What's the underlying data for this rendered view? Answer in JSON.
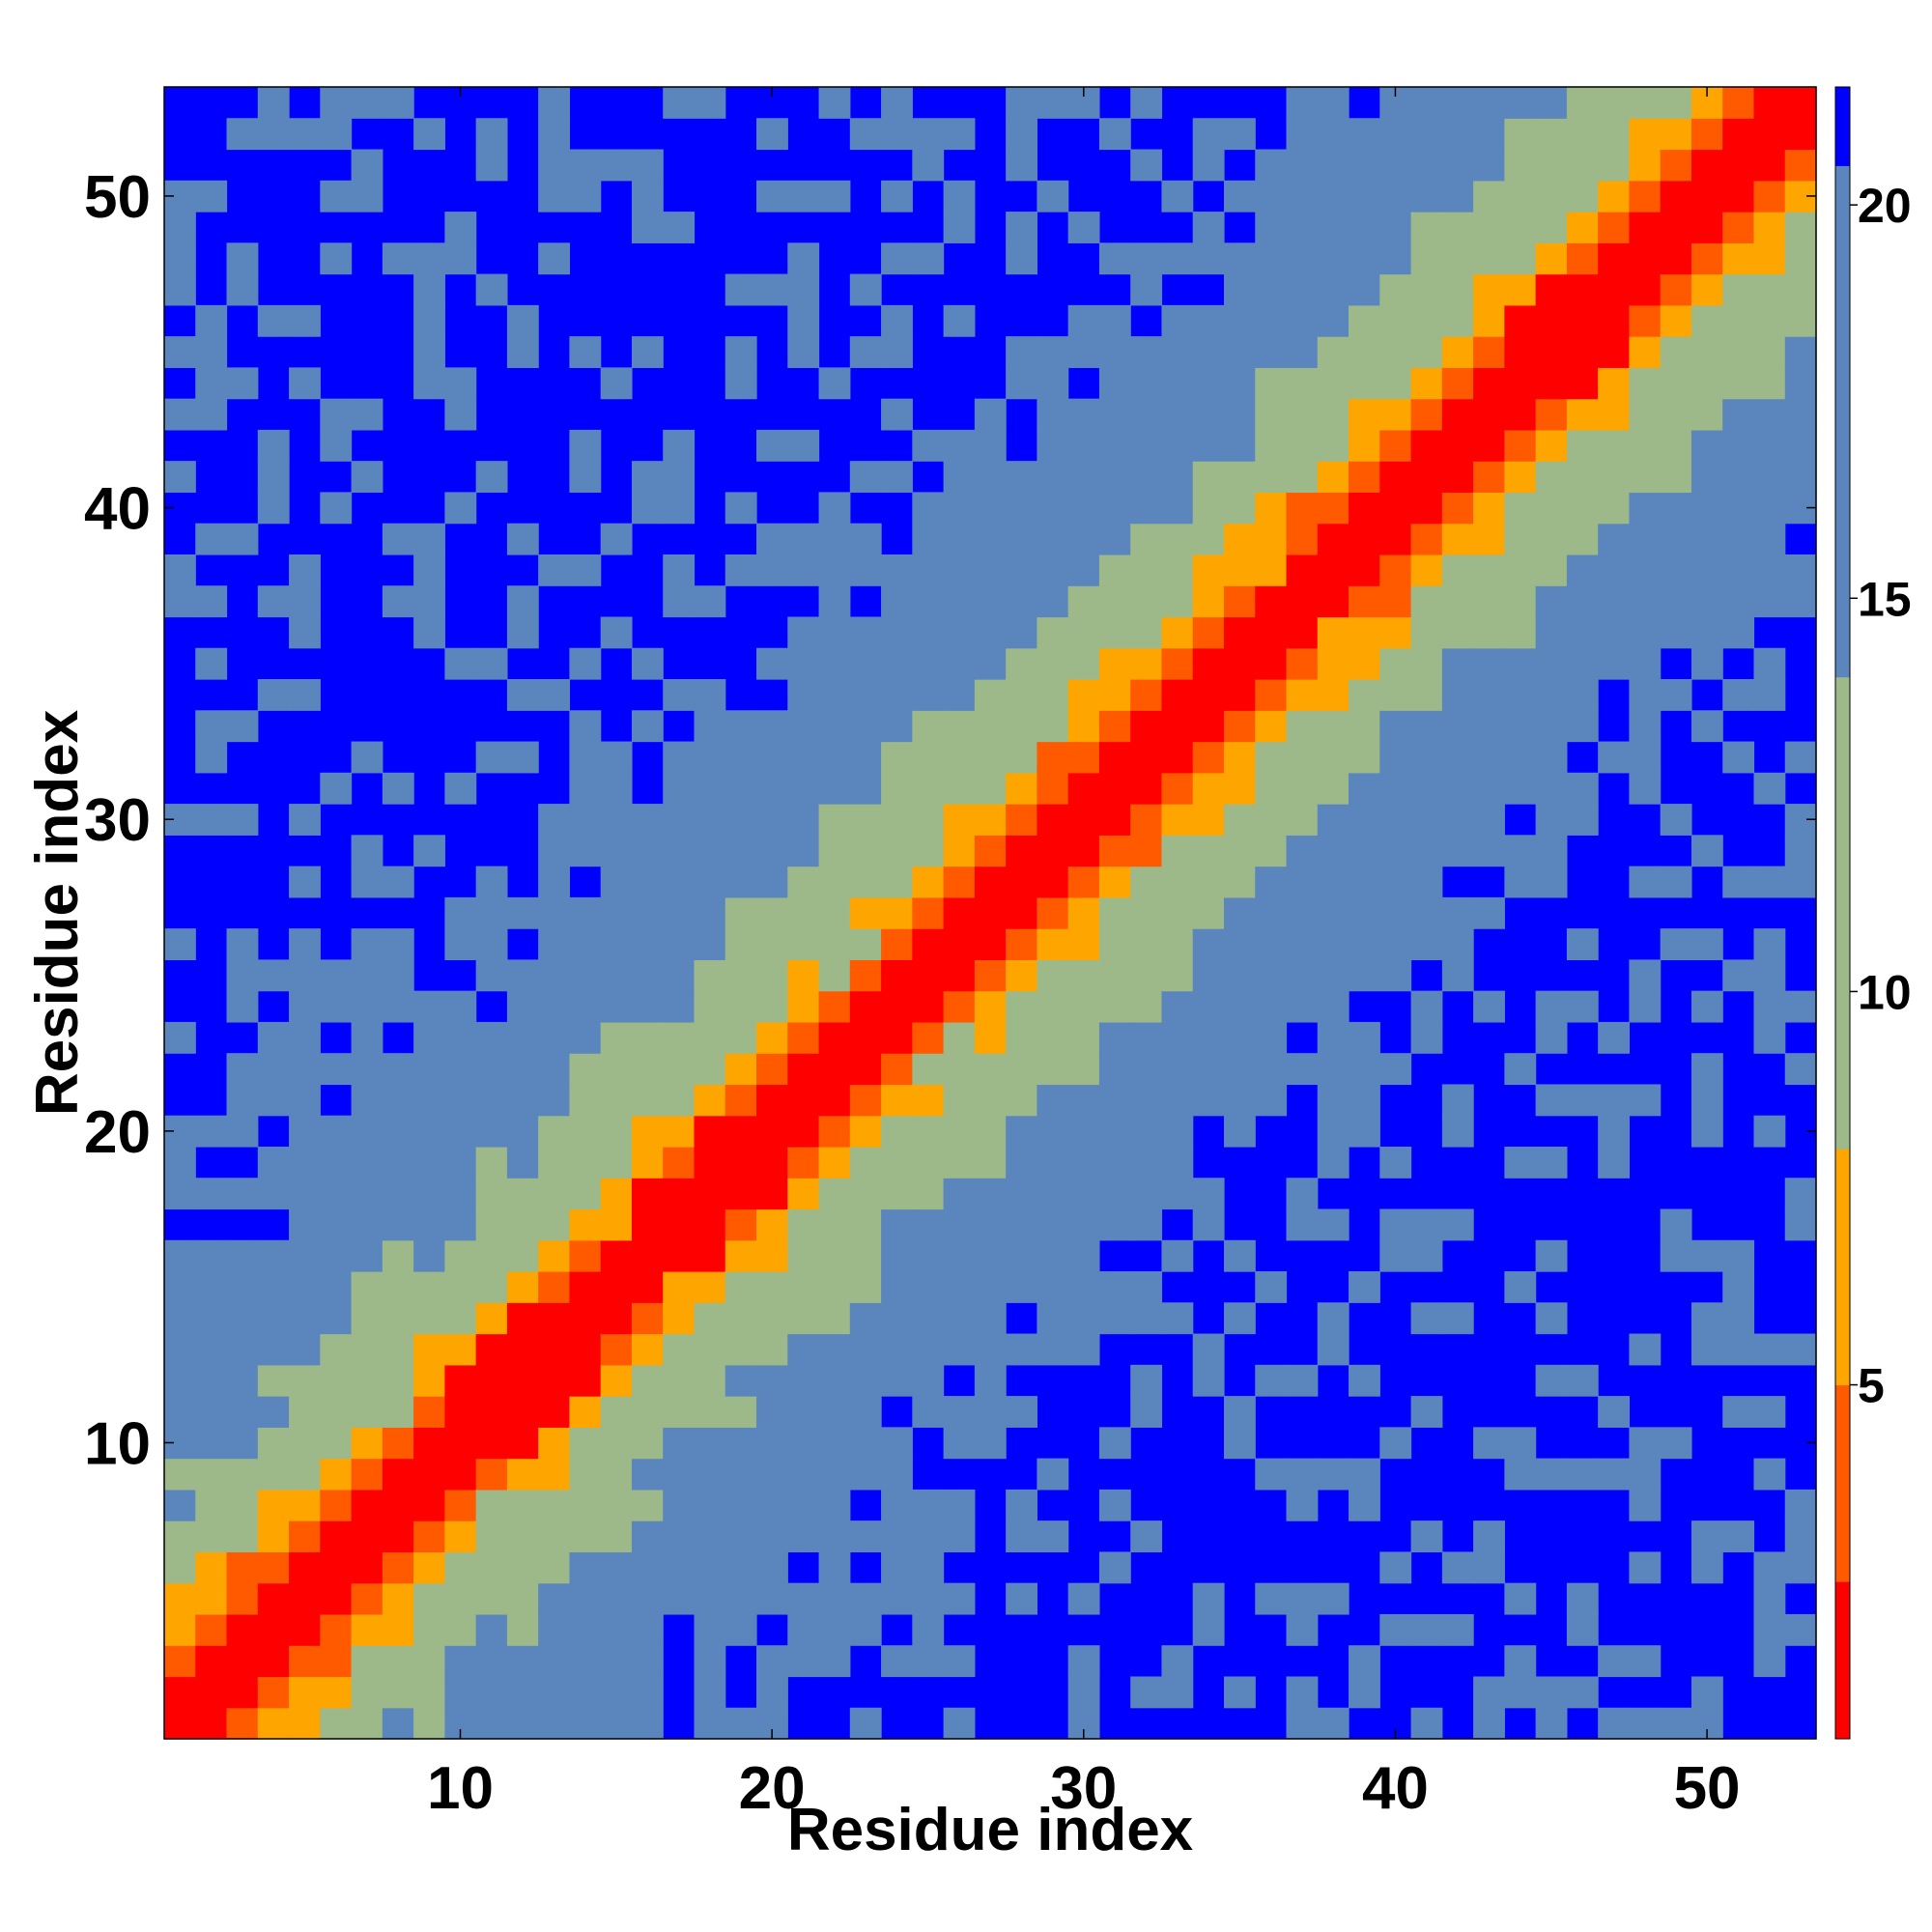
{
  "chart_data": {
    "type": "heatmap",
    "description_of_values": "pairwise residue distance map, symmetric, low values on the diagonal",
    "xlabel": "Residue index",
    "ylabel": "Residue index",
    "x_range": [
      1,
      53
    ],
    "y_range": [
      1,
      53
    ],
    "xticks": [
      10,
      20,
      30,
      40,
      50
    ],
    "yticks": [
      10,
      20,
      30,
      40,
      50
    ],
    "xtick_labels": [
      "10",
      "20",
      "30",
      "40",
      "50"
    ],
    "ytick_labels": [
      "10",
      "20",
      "30",
      "40",
      "50"
    ],
    "colorbar": {
      "range": [
        0.5,
        21.5
      ],
      "ticks": [
        5,
        10,
        15,
        20
      ],
      "tick_labels": [
        "5",
        "10",
        "15",
        "20"
      ],
      "placement": "right"
    },
    "saturation_value": 21,
    "colors": {
      "diagonal": "#ff0000",
      "near": "#ff5a00",
      "close": "#ffa500",
      "mid": "#9db98a",
      "far": "#5b86bd",
      "saturated": "#0000ff"
    },
    "profile": {
      "description": "approximate distance as a function of sequence separation |i-j|",
      "separation": [
        0,
        1,
        2,
        3,
        4,
        5,
        6,
        7,
        8,
        10,
        12,
        15,
        20,
        30,
        52
      ],
      "distance": [
        0.5,
        1.5,
        3.5,
        6.5,
        8.5,
        10,
        11.5,
        13,
        14.5,
        16.5,
        18.5,
        20,
        21,
        21,
        21
      ]
    }
  }
}
